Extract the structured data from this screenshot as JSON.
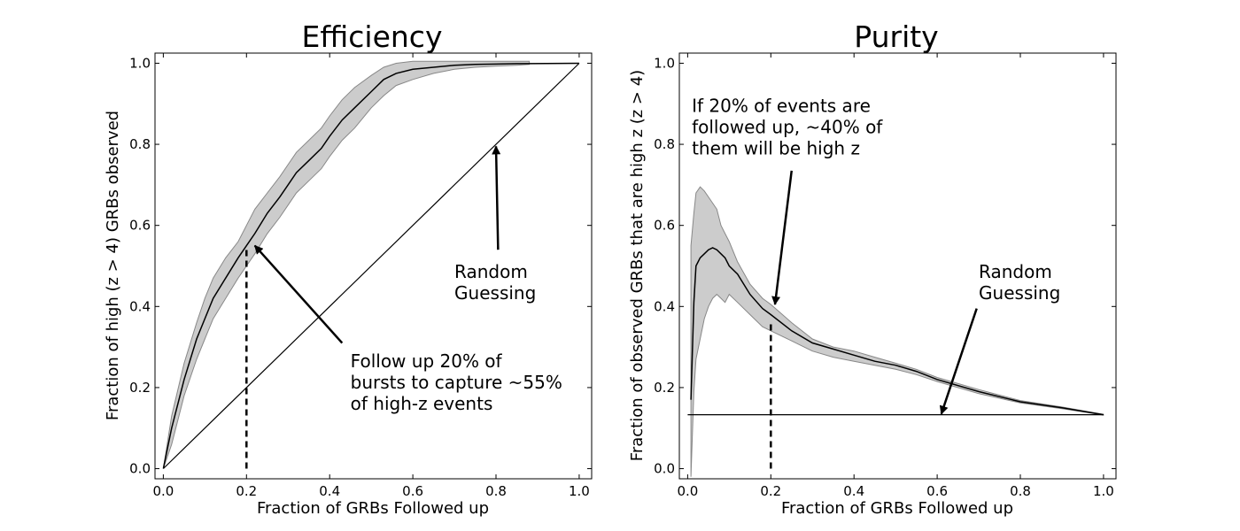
{
  "chart_data": [
    {
      "type": "line",
      "title": "Efficiency",
      "xlabel": "Fraction of GRBs Followed up",
      "ylabel": "Fraction of high (z > 4) GRBs observed",
      "xlim": [
        -0.02,
        1.03
      ],
      "ylim": [
        -0.025,
        1.025
      ],
      "xticks": [
        0.0,
        0.2,
        0.4,
        0.6,
        0.8,
        1.0
      ],
      "yticks": [
        0.0,
        0.2,
        0.4,
        0.6,
        0.8,
        1.0
      ],
      "xticklabels": [
        "0.0",
        "0.2",
        "0.4",
        "0.6",
        "0.8",
        "1.0"
      ],
      "yticklabels": [
        "0.0",
        "0.2",
        "0.4",
        "0.6",
        "0.8",
        "1.0"
      ],
      "grid": false,
      "series": [
        {
          "role": "median",
          "color": "#000000",
          "x": [
            0.0,
            0.02,
            0.05,
            0.08,
            0.1,
            0.12,
            0.15,
            0.18,
            0.2,
            0.22,
            0.25,
            0.28,
            0.3,
            0.32,
            0.35,
            0.38,
            0.4,
            0.43,
            0.46,
            0.5,
            0.53,
            0.56,
            0.6,
            0.65,
            0.7,
            0.75,
            0.8,
            0.85,
            0.88,
            1.0
          ],
          "y": [
            0.0,
            0.1,
            0.22,
            0.32,
            0.37,
            0.42,
            0.47,
            0.52,
            0.55,
            0.58,
            0.63,
            0.67,
            0.7,
            0.73,
            0.76,
            0.79,
            0.82,
            0.86,
            0.89,
            0.93,
            0.96,
            0.975,
            0.985,
            0.99,
            0.995,
            0.997,
            0.998,
            0.999,
            0.999,
            1.0
          ]
        },
        {
          "role": "band-upper",
          "color": "#cccccc",
          "x": [
            0.0,
            0.02,
            0.05,
            0.08,
            0.1,
            0.12,
            0.15,
            0.18,
            0.2,
            0.22,
            0.25,
            0.28,
            0.3,
            0.32,
            0.35,
            0.38,
            0.4,
            0.43,
            0.46,
            0.5,
            0.53,
            0.56,
            0.6,
            0.65,
            0.7,
            0.75,
            0.8,
            0.85,
            0.88
          ],
          "y": [
            0.0,
            0.13,
            0.26,
            0.36,
            0.42,
            0.47,
            0.52,
            0.56,
            0.6,
            0.64,
            0.68,
            0.72,
            0.75,
            0.78,
            0.81,
            0.84,
            0.87,
            0.91,
            0.94,
            0.97,
            0.99,
            1.0,
            1.005,
            1.005,
            1.005,
            1.005,
            1.005,
            1.005,
            1.005
          ]
        },
        {
          "role": "band-lower",
          "color": "#cccccc",
          "x": [
            0.0,
            0.02,
            0.05,
            0.08,
            0.1,
            0.12,
            0.15,
            0.18,
            0.2,
            0.22,
            0.25,
            0.28,
            0.3,
            0.32,
            0.35,
            0.38,
            0.4,
            0.43,
            0.46,
            0.5,
            0.53,
            0.56,
            0.6,
            0.65,
            0.7,
            0.75,
            0.8,
            0.85,
            0.88
          ],
          "y": [
            0.0,
            0.06,
            0.18,
            0.27,
            0.32,
            0.37,
            0.42,
            0.47,
            0.5,
            0.53,
            0.58,
            0.62,
            0.65,
            0.68,
            0.71,
            0.74,
            0.77,
            0.81,
            0.84,
            0.89,
            0.92,
            0.945,
            0.96,
            0.975,
            0.985,
            0.99,
            0.993,
            0.995,
            0.997
          ]
        },
        {
          "role": "random-guessing",
          "color": "#000000",
          "x": [
            0.0,
            1.0
          ],
          "y": [
            0.0,
            1.0
          ]
        }
      ],
      "vline": {
        "x": 0.2,
        "y0": 0.0,
        "y1": 0.55,
        "style": "dashed"
      },
      "annotations": [
        {
          "text": [
            "Follow up 20% of",
            "bursts to capture ~55%",
            "of high-z events"
          ],
          "text_x": 0.45,
          "text_y": 0.25,
          "arrow_from": [
            0.43,
            0.31
          ],
          "arrow_to": [
            0.22,
            0.55
          ]
        },
        {
          "text": [
            "Random",
            "Guessing"
          ],
          "text_x": 0.7,
          "text_y": 0.47,
          "arrow_from": [
            0.805,
            0.54
          ],
          "arrow_to": [
            0.8,
            0.795
          ]
        }
      ]
    },
    {
      "type": "line",
      "title": "Purity",
      "xlabel": "Fraction of GRBs Followed up",
      "ylabel": "Fraction of observed GRBs that are high z (z > 4)",
      "xlim": [
        -0.02,
        1.03
      ],
      "ylim": [
        -0.025,
        1.025
      ],
      "xticks": [
        0.0,
        0.2,
        0.4,
        0.6,
        0.8,
        1.0
      ],
      "yticks": [
        0.0,
        0.2,
        0.4,
        0.6,
        0.8,
        1.0
      ],
      "xticklabels": [
        "0.0",
        "0.2",
        "0.4",
        "0.6",
        "0.8",
        "1.0"
      ],
      "yticklabels": [
        "0.0",
        "0.2",
        "0.4",
        "0.6",
        "0.8",
        "1.0"
      ],
      "grid": false,
      "series": [
        {
          "role": "median",
          "color": "#000000",
          "x": [
            0.008,
            0.015,
            0.02,
            0.03,
            0.04,
            0.05,
            0.06,
            0.07,
            0.08,
            0.09,
            0.1,
            0.12,
            0.15,
            0.18,
            0.2,
            0.25,
            0.3,
            0.35,
            0.4,
            0.45,
            0.5,
            0.55,
            0.6,
            0.7,
            0.8,
            0.9,
            1.0
          ],
          "y": [
            0.17,
            0.41,
            0.5,
            0.52,
            0.53,
            0.54,
            0.545,
            0.54,
            0.53,
            0.52,
            0.5,
            0.48,
            0.43,
            0.395,
            0.38,
            0.34,
            0.31,
            0.295,
            0.28,
            0.265,
            0.255,
            0.24,
            0.22,
            0.19,
            0.165,
            0.15,
            0.133
          ]
        },
        {
          "role": "band-upper",
          "color": "#cccccc",
          "x": [
            0.008,
            0.015,
            0.02,
            0.03,
            0.04,
            0.05,
            0.06,
            0.07,
            0.08,
            0.09,
            0.1,
            0.12,
            0.15,
            0.18,
            0.2,
            0.25,
            0.3,
            0.35,
            0.4,
            0.45,
            0.5,
            0.55,
            0.6,
            0.7,
            0.8,
            0.9,
            1.0
          ],
          "y": [
            0.55,
            0.63,
            0.68,
            0.695,
            0.685,
            0.67,
            0.655,
            0.64,
            0.6,
            0.58,
            0.56,
            0.51,
            0.455,
            0.42,
            0.405,
            0.36,
            0.32,
            0.3,
            0.29,
            0.275,
            0.26,
            0.245,
            0.225,
            0.195,
            0.168,
            0.152,
            0.134
          ]
        },
        {
          "role": "band-lower",
          "color": "#cccccc",
          "x": [
            0.008,
            0.015,
            0.02,
            0.03,
            0.04,
            0.05,
            0.06,
            0.07,
            0.08,
            0.09,
            0.1,
            0.12,
            0.15,
            0.18,
            0.2,
            0.25,
            0.3,
            0.35,
            0.4,
            0.45,
            0.5,
            0.55,
            0.6,
            0.7,
            0.8,
            0.9,
            1.0
          ],
          "y": [
            -0.02,
            0.19,
            0.27,
            0.32,
            0.37,
            0.4,
            0.42,
            0.43,
            0.42,
            0.41,
            0.43,
            0.41,
            0.38,
            0.35,
            0.34,
            0.315,
            0.29,
            0.275,
            0.265,
            0.255,
            0.245,
            0.232,
            0.215,
            0.185,
            0.162,
            0.148,
            0.132
          ]
        },
        {
          "role": "random-guessing",
          "color": "#000000",
          "x": [
            0.0,
            1.0
          ],
          "y": [
            0.133,
            0.133
          ]
        }
      ],
      "vline": {
        "x": 0.2,
        "y0": 0.0,
        "y1": 0.365,
        "style": "dashed"
      },
      "annotations": [
        {
          "text": [
            "If 20% of events are",
            "followed up, ~40% of",
            "them will be high z"
          ],
          "text_x": 0.01,
          "text_y": 0.88,
          "arrow_from": [
            0.25,
            0.735
          ],
          "arrow_to": [
            0.21,
            0.405
          ]
        },
        {
          "text": [
            "Random",
            "Guessing"
          ],
          "text_x": 0.7,
          "text_y": 0.47,
          "arrow_from": [
            0.695,
            0.395
          ],
          "arrow_to": [
            0.61,
            0.135
          ]
        }
      ]
    }
  ]
}
